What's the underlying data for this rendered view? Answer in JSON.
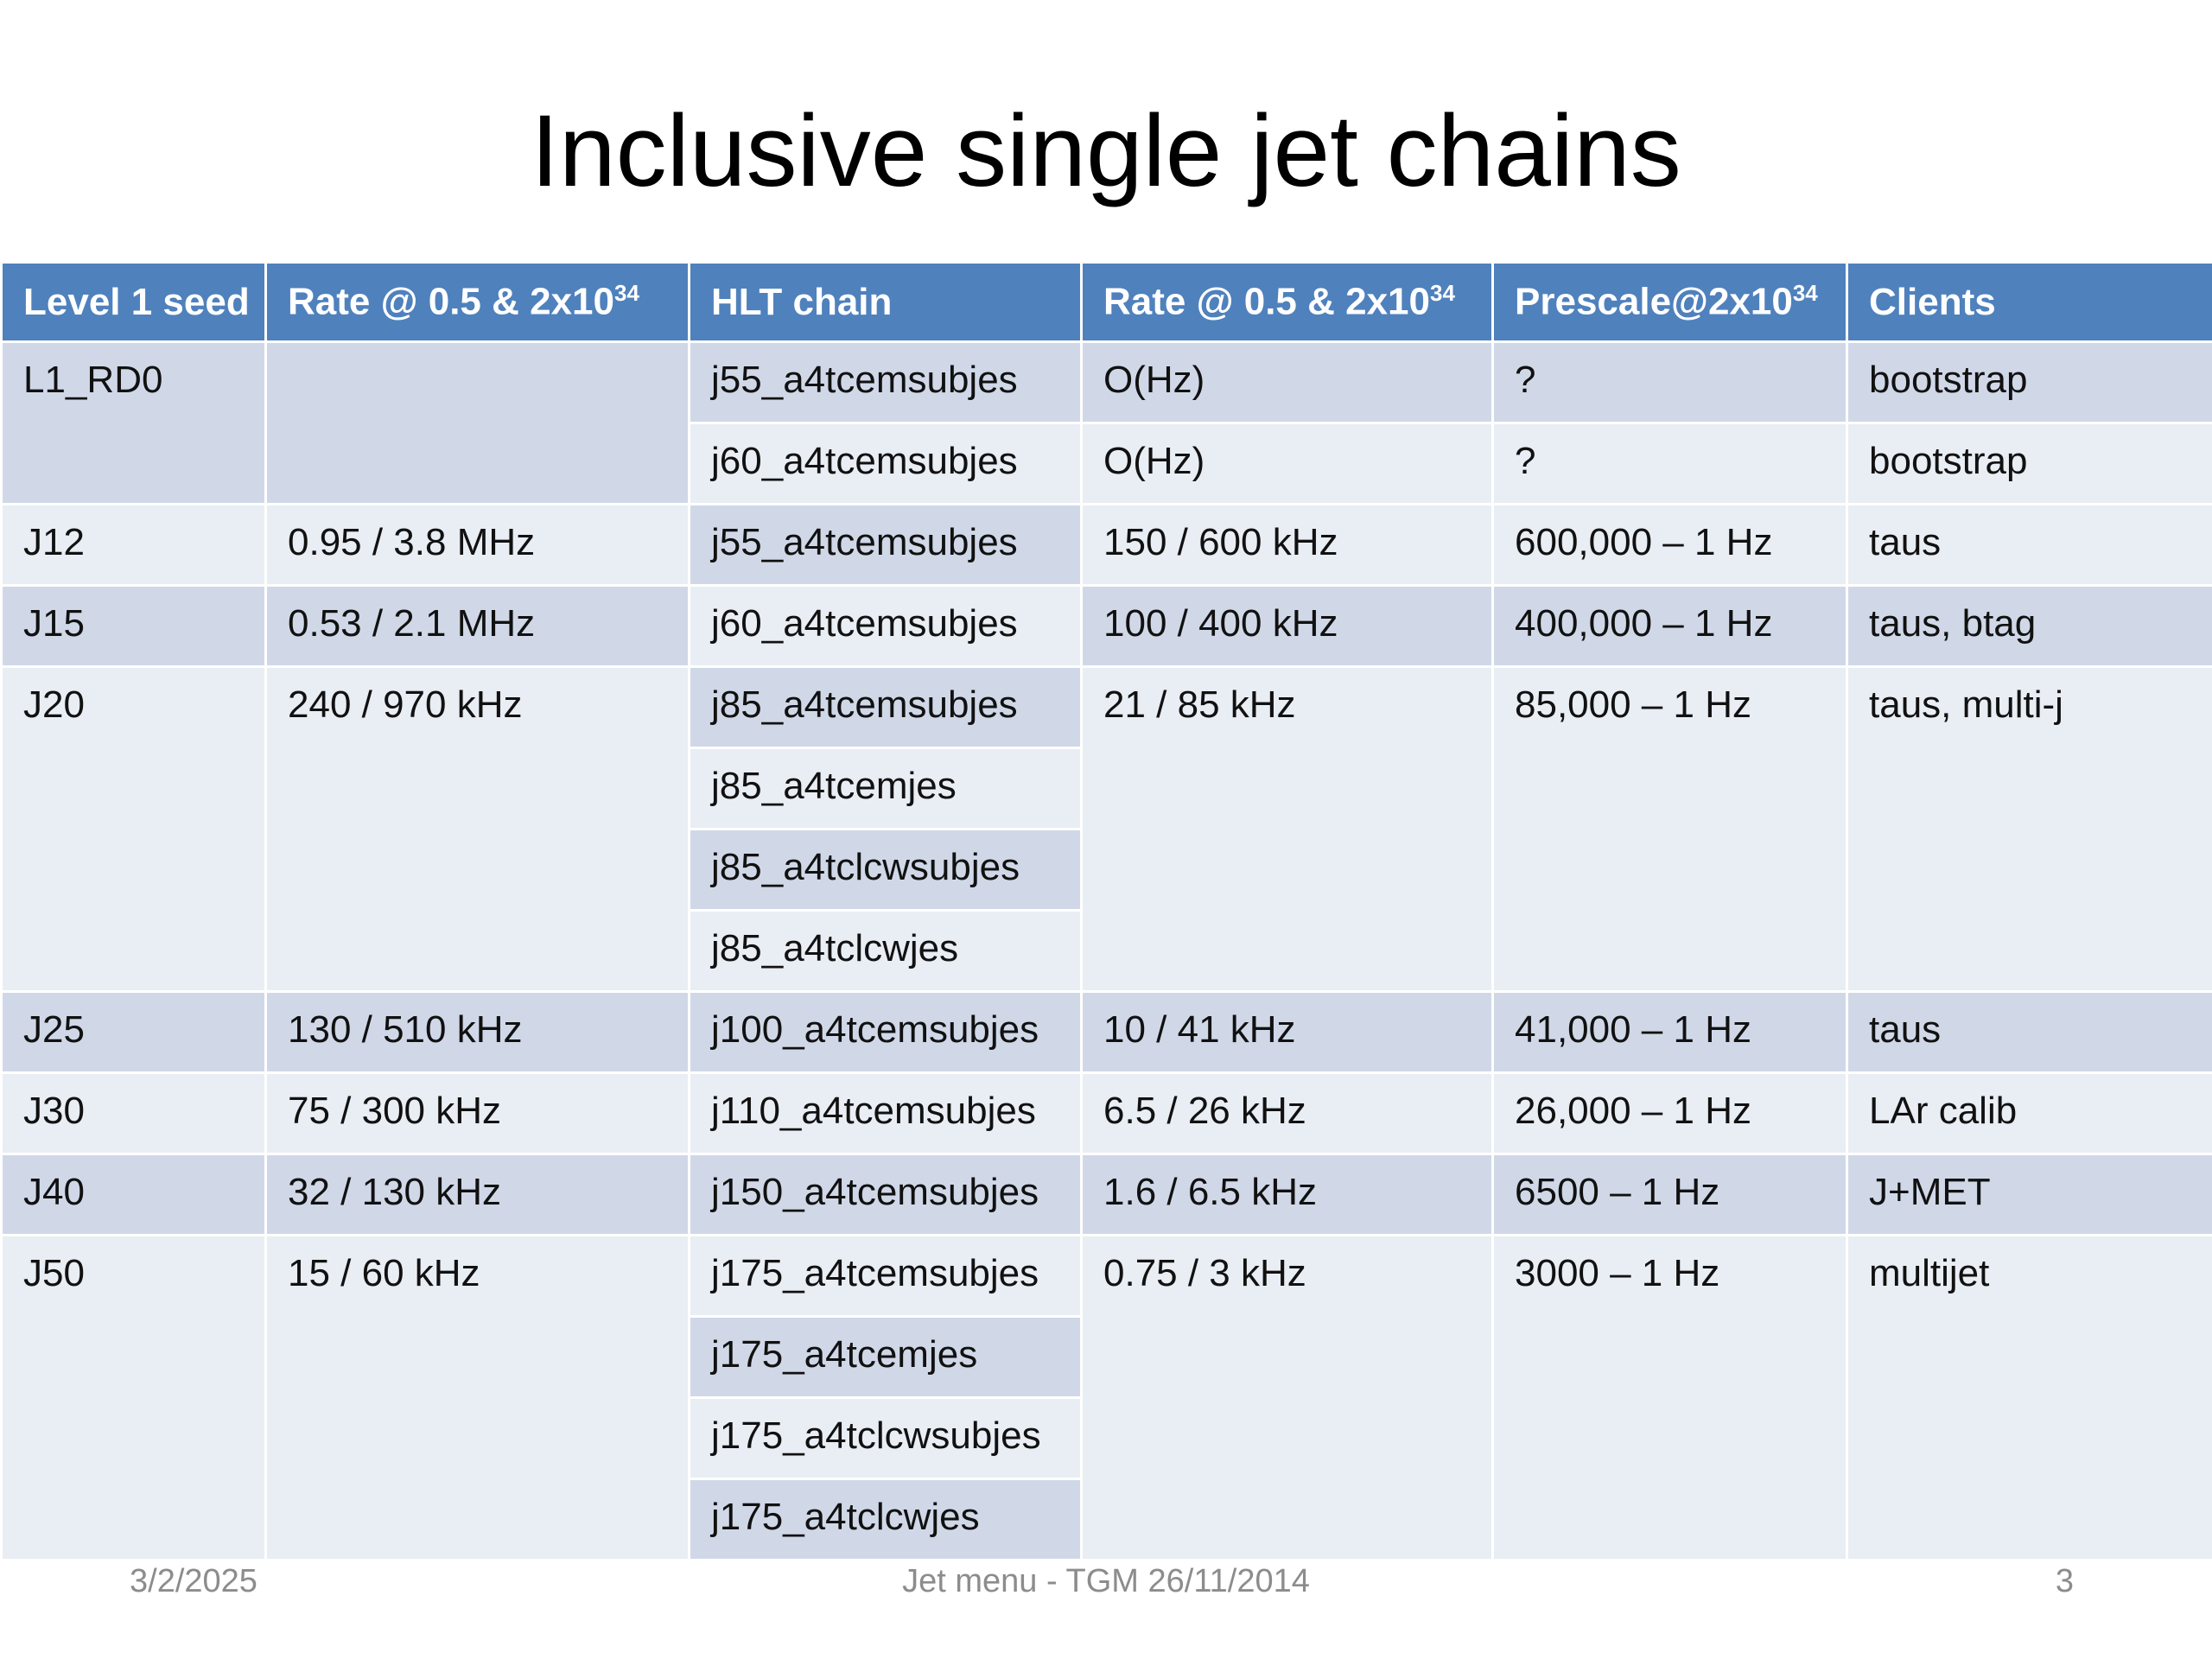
{
  "title": "Inclusive single jet chains",
  "headers": {
    "level1_seed": "Level 1 seed",
    "rate_prefix": "Rate @ 0.5 & 2x10",
    "rate_exp": "34",
    "hlt_chain": "HLT chain",
    "rate2_prefix": "Rate @ 0.5 & 2x10",
    "rate2_exp": "34",
    "prescale_prefix": "Prescale@2x10",
    "prescale_exp": "34",
    "clients": "Clients"
  },
  "groups": [
    {
      "seed": "L1_RD0",
      "l1rate": "",
      "hlt_rate": "",
      "prescale": "",
      "clients": "",
      "chains": [
        {
          "chain": "j55_a4tcemsubjes",
          "rate": "O(Hz)",
          "prescale": "?",
          "clients": "bootstrap"
        },
        {
          "chain": "j60_a4tcemsubjes",
          "rate": "O(Hz)",
          "prescale": "?",
          "clients": "bootstrap"
        }
      ]
    },
    {
      "seed": "J12",
      "l1rate": "0.95 / 3.8 MHz",
      "hlt_rate": "150 / 600 kHz",
      "prescale": "600,000 – 1 Hz",
      "clients": "taus",
      "chains": [
        {
          "chain": "j55_a4tcemsubjes"
        }
      ]
    },
    {
      "seed": "J15",
      "l1rate": "0.53 / 2.1 MHz",
      "hlt_rate": "100 / 400 kHz",
      "prescale": "400,000 – 1 Hz",
      "clients": "taus, btag",
      "chains": [
        {
          "chain": "j60_a4tcemsubjes"
        }
      ]
    },
    {
      "seed": "J20",
      "l1rate": "240 / 970 kHz",
      "hlt_rate": "21 / 85 kHz",
      "prescale": "85,000 – 1 Hz",
      "clients": "taus, multi-j",
      "chains": [
        {
          "chain": "j85_a4tcemsubjes"
        },
        {
          "chain": "j85_a4tcemjes"
        },
        {
          "chain": "j85_a4tclcwsubjes"
        },
        {
          "chain": "j85_a4tclcwjes"
        }
      ]
    },
    {
      "seed": "J25",
      "l1rate": "130 / 510 kHz",
      "hlt_rate": "10 / 41 kHz",
      "prescale": "41,000 – 1 Hz",
      "clients": "taus",
      "chains": [
        {
          "chain": "j100_a4tcemsubjes"
        }
      ]
    },
    {
      "seed": "J30",
      "l1rate": "75 / 300 kHz",
      "hlt_rate": "6.5 / 26 kHz",
      "prescale": "26,000 – 1 Hz",
      "clients": "LAr calib",
      "chains": [
        {
          "chain": "j110_a4tcemsubjes"
        }
      ]
    },
    {
      "seed": "J40",
      "l1rate": "32 / 130 kHz",
      "hlt_rate": "1.6 / 6.5 kHz",
      "prescale": "6500 – 1 Hz",
      "clients": "J+MET",
      "chains": [
        {
          "chain": "j150_a4tcemsubjes"
        }
      ]
    },
    {
      "seed": "J50",
      "l1rate": "15 / 60 kHz",
      "hlt_rate": "0.75 / 3 kHz",
      "prescale": "3000 – 1 Hz",
      "clients": "multijet",
      "chains": [
        {
          "chain": "j175_a4tcemsubjes"
        },
        {
          "chain": "j175_a4tcemjes"
        },
        {
          "chain": "j175_a4tclcwsubjes"
        },
        {
          "chain": "j175_a4tclcwjes"
        }
      ]
    }
  ],
  "footer": {
    "date": "3/2/2025",
    "center": "Jet menu - TGM 26/11/2014",
    "page": "3"
  },
  "colors": {
    "header": "#4f81bd",
    "row_dark": "#d0d8e8",
    "row_light": "#e9edf4"
  }
}
